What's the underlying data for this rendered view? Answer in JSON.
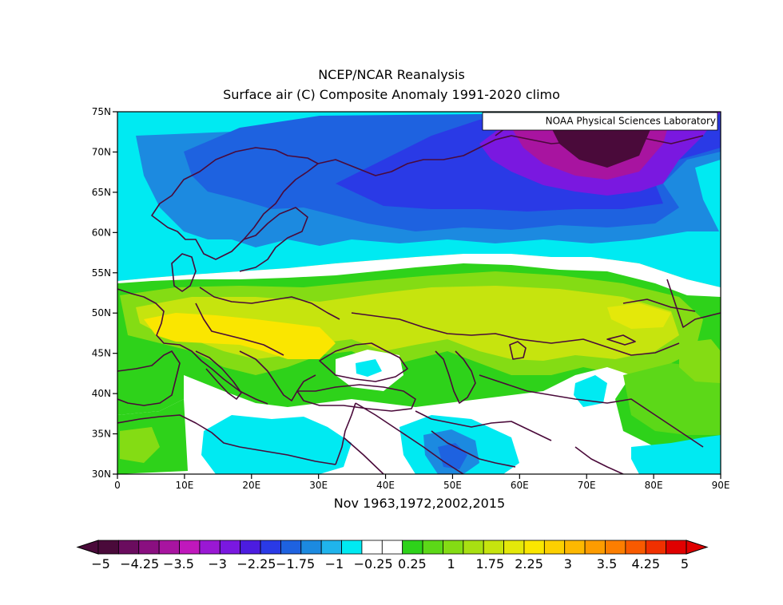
{
  "title_line1": "NCEP/NCAR Reanalysis",
  "title_line2": "Surface air (C) Composite Anomaly 1991-2020 climo",
  "subtitle": "Nov 1963,1972,2002,2015",
  "credit": "NOAA Physical Sciences Laboratory",
  "lat_ticks": [
    "75N",
    "70N",
    "65N",
    "60N",
    "55N",
    "50N",
    "45N",
    "40N",
    "35N",
    "30N"
  ],
  "lon_ticks": [
    "0",
    "10E",
    "20E",
    "30E",
    "40E",
    "50E",
    "60E",
    "70E",
    "80E",
    "90E"
  ],
  "colorbar": {
    "labels": [
      "-5",
      "-4.25",
      "-3.5",
      "-3",
      "-2.25",
      "-1.75",
      "-1",
      "-0.25",
      "0.25",
      "1",
      "1.75",
      "2.25",
      "3",
      "3.5",
      "4.25",
      "5"
    ],
    "colors": [
      "#4a0a3a",
      "#6a0c5e",
      "#8a0f80",
      "#a814a0",
      "#c018bc",
      "#9a18d4",
      "#7a18e0",
      "#4c1ce0",
      "#2a3ae6",
      "#1e62e0",
      "#1c8ae0",
      "#20b4ec",
      "#00eaf2",
      "#ffffff",
      "#ffffff",
      "#2ed21a",
      "#5cd818",
      "#84dc14",
      "#a8e012",
      "#c6e40e",
      "#e4e80a",
      "#fae600",
      "#fcd000",
      "#fdb800",
      "#fd9c00",
      "#fc7e00",
      "#f85a00",
      "#f03000",
      "#e00000"
    ]
  },
  "map_data": {
    "lon_range": [
      0,
      90
    ],
    "lat_range": [
      30,
      75
    ],
    "variable": "Surface air temperature anomaly (C)",
    "color_key": {
      "deep_negative": "#7a18e0",
      "negative": "#1e62e0",
      "slight_negative": "#00eaf2",
      "neutral": "#ffffff",
      "slight_positive": "#2ed21a",
      "positive": "#c6e40e",
      "strong_positive": "#fae600"
    }
  }
}
